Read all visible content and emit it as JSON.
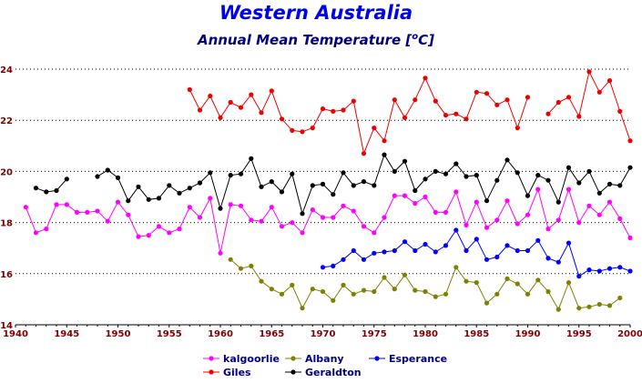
{
  "chart_data": {
    "type": "line",
    "title": "Western Australia",
    "subtitle_main": "Annual Mean Temperature [",
    "subtitle_sup": "o",
    "subtitle_end": "C]",
    "xlim": [
      1940,
      2000
    ],
    "ylim": [
      14,
      24
    ],
    "x_ticks": [
      1940,
      1945,
      1950,
      1955,
      1960,
      1965,
      1970,
      1975,
      1980,
      1985,
      1990,
      1995,
      2000
    ],
    "y_ticks": [
      14,
      16,
      18,
      20,
      22,
      24
    ],
    "grid": true,
    "legend_placement": "bottom-center",
    "series": [
      {
        "name": "kalgoorlie",
        "color": "#ff00ff",
        "x": [
          1941,
          1942,
          1943,
          1944,
          1945,
          1946,
          1947,
          1948,
          1949,
          1950,
          1951,
          1952,
          1953,
          1954,
          1955,
          1956,
          1957,
          1958,
          1959,
          1960,
          1961,
          1962,
          1963,
          1964,
          1965,
          1966,
          1967,
          1968,
          1969,
          1970,
          1971,
          1972,
          1973,
          1974,
          1975,
          1976,
          1977,
          1978,
          1979,
          1980,
          1981,
          1982,
          1983,
          1984,
          1985,
          1986,
          1987,
          1988,
          1989,
          1990,
          1991,
          1992,
          1993,
          1994,
          1995,
          1996,
          1997,
          1998,
          1999,
          2000
        ],
        "y": [
          18.6,
          17.6,
          17.75,
          18.7,
          18.7,
          18.4,
          18.4,
          18.45,
          18.05,
          18.8,
          18.3,
          17.45,
          17.5,
          17.85,
          17.6,
          17.75,
          18.6,
          18.2,
          18.95,
          16.8,
          18.7,
          18.65,
          18.1,
          18.05,
          18.6,
          17.85,
          18.0,
          17.6,
          18.5,
          18.2,
          18.2,
          18.65,
          18.45,
          17.85,
          17.6,
          18.2,
          19.05,
          19.05,
          18.75,
          19.0,
          18.4,
          18.4,
          19.2,
          17.9,
          18.8,
          17.8,
          18.1,
          18.85,
          17.95,
          18.3,
          19.3,
          17.75,
          18.1,
          19.3,
          18.0,
          18.65,
          18.3,
          18.8,
          18.15,
          17.4
        ]
      },
      {
        "name": "Albany",
        "color": "#808000",
        "x": [
          1961,
          1962,
          1963,
          1964,
          1965,
          1966,
          1967,
          1968,
          1969,
          1970,
          1971,
          1972,
          1973,
          1974,
          1975,
          1976,
          1977,
          1978,
          1979,
          1980,
          1981,
          1982,
          1983,
          1984,
          1985,
          1986,
          1987,
          1988,
          1989,
          1990,
          1991,
          1992,
          1993,
          1994,
          1995,
          1996,
          1997,
          1998,
          1999
        ],
        "y": [
          16.55,
          16.2,
          16.3,
          15.7,
          15.4,
          15.2,
          15.55,
          14.65,
          15.4,
          15.3,
          14.95,
          15.55,
          15.2,
          15.35,
          15.3,
          15.85,
          15.4,
          15.95,
          15.35,
          15.3,
          15.1,
          15.2,
          16.25,
          15.7,
          15.65,
          14.85,
          15.2,
          15.8,
          15.6,
          15.2,
          15.75,
          15.3,
          14.6,
          15.65,
          14.65,
          14.7,
          14.8,
          14.75,
          15.05
        ]
      },
      {
        "name": "Esperance",
        "color": "#0000ff",
        "x": [
          1970,
          1971,
          1972,
          1973,
          1974,
          1975,
          1976,
          1977,
          1978,
          1979,
          1980,
          1981,
          1982,
          1983,
          1984,
          1985,
          1986,
          1987,
          1988,
          1989,
          1990,
          1991,
          1992,
          1993,
          1994,
          1995,
          1996,
          1997,
          1998,
          1999,
          2000
        ],
        "y": [
          16.25,
          16.3,
          16.55,
          16.9,
          16.55,
          16.8,
          16.85,
          16.9,
          17.25,
          16.9,
          17.15,
          16.85,
          17.1,
          17.7,
          16.9,
          17.35,
          16.55,
          16.65,
          17.1,
          16.9,
          16.9,
          17.3,
          16.6,
          16.45,
          17.2,
          15.9,
          16.15,
          16.1,
          16.2,
          16.25,
          16.1
        ]
      },
      {
        "name": "Giles",
        "color": "#ee0000",
        "x": [
          1957,
          1958,
          1959,
          1960,
          1961,
          1962,
          1963,
          1964,
          1965,
          1966,
          1967,
          1968,
          1969,
          1970,
          1971,
          1972,
          1973,
          1974,
          1975,
          1976,
          1977,
          1978,
          1979,
          1980,
          1981,
          1982,
          1983,
          1984,
          1985,
          1986,
          1987,
          1988,
          1989,
          1990,
          1992,
          1993,
          1994,
          1995,
          1996,
          1997,
          1998,
          1999,
          2000
        ],
        "y": [
          23.2,
          22.4,
          22.95,
          22.1,
          22.7,
          22.5,
          23.0,
          22.3,
          23.15,
          22.05,
          21.6,
          21.55,
          21.7,
          22.45,
          22.35,
          22.4,
          22.75,
          20.7,
          21.7,
          21.2,
          22.8,
          22.1,
          22.8,
          23.65,
          22.75,
          22.2,
          22.25,
          22.05,
          23.1,
          23.05,
          22.6,
          22.8,
          21.7,
          22.9,
          22.25,
          22.7,
          22.9,
          22.15,
          23.9,
          23.1,
          23.55,
          22.35,
          21.2
        ]
      },
      {
        "name": "Geraldton",
        "color": "#000000",
        "x": [
          1942,
          1943,
          1944,
          1945,
          1948,
          1949,
          1950,
          1951,
          1952,
          1953,
          1954,
          1955,
          1956,
          1957,
          1958,
          1959,
          1960,
          1961,
          1962,
          1963,
          1964,
          1965,
          1966,
          1967,
          1968,
          1969,
          1970,
          1971,
          1972,
          1973,
          1974,
          1975,
          1976,
          1977,
          1978,
          1979,
          1980,
          1981,
          1982,
          1983,
          1984,
          1985,
          1986,
          1987,
          1988,
          1989,
          1990,
          1991,
          1992,
          1993,
          1994,
          1995,
          1996,
          1997,
          1998,
          1999,
          2000
        ],
        "y": [
          19.35,
          19.2,
          19.25,
          19.7,
          19.8,
          20.05,
          19.75,
          18.85,
          19.4,
          18.9,
          18.95,
          19.45,
          19.15,
          19.35,
          19.55,
          19.95,
          18.55,
          19.85,
          19.9,
          20.5,
          19.4,
          19.6,
          19.2,
          19.9,
          18.35,
          19.45,
          19.5,
          19.1,
          19.95,
          19.45,
          19.6,
          19.45,
          20.65,
          20.0,
          20.4,
          19.25,
          19.7,
          20.0,
          19.9,
          20.3,
          19.8,
          19.85,
          18.85,
          19.65,
          20.45,
          19.95,
          19.05,
          19.85,
          19.65,
          18.8,
          20.15,
          19.55,
          20.0,
          19.15,
          19.5,
          19.45,
          20.15
        ]
      }
    ],
    "legend": [
      {
        "series": "kalgoorlie",
        "label": "kalgoorlie",
        "color": "#ff00ff"
      },
      {
        "series": "Albany",
        "label": "Albany",
        "color": "#808000"
      },
      {
        "series": "Esperance",
        "label": "Esperance",
        "color": "#0000ff"
      },
      {
        "series": "Giles",
        "label": "Giles",
        "color": "#ee0000"
      },
      {
        "series": "Geraldton",
        "label": "Geraldton",
        "color": "#000000"
      }
    ]
  }
}
